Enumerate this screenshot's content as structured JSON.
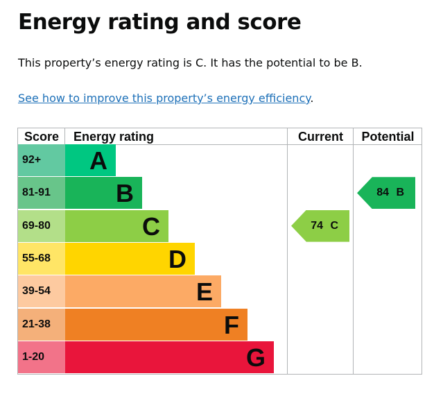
{
  "title": "Energy rating and score",
  "summary": "This property’s energy rating is C. It has the potential to be B.",
  "link_text": "See how to improve this property’s energy efficiency",
  "link_suffix": ".",
  "headers": {
    "score": "Score",
    "rating": "Energy rating",
    "current": "Current",
    "potential": "Potential"
  },
  "bands": [
    {
      "score": "92+",
      "letter": "A",
      "color": "#00c781",
      "score_color": "#62c9a1"
    },
    {
      "score": "81-91",
      "letter": "B",
      "color": "#19b459",
      "score_color": "#68c58a"
    },
    {
      "score": "69-80",
      "letter": "C",
      "color": "#8dce46",
      "score_color": "#b3df89"
    },
    {
      "score": "55-68",
      "letter": "D",
      "color": "#ffd500",
      "score_color": "#ffe566"
    },
    {
      "score": "39-54",
      "letter": "E",
      "color": "#fcaa65",
      "score_color": "#fdcaa0"
    },
    {
      "score": "21-38",
      "letter": "F",
      "color": "#ef8023",
      "score_color": "#f4b07a"
    },
    {
      "score": "1-20",
      "letter": "G",
      "color": "#e9153b",
      "score_color": "#f27389"
    }
  ],
  "current": {
    "label": "74 C",
    "band": "C",
    "color": "#8dce46"
  },
  "potential": {
    "label": "84 B",
    "band": "B",
    "color": "#19b459"
  }
}
